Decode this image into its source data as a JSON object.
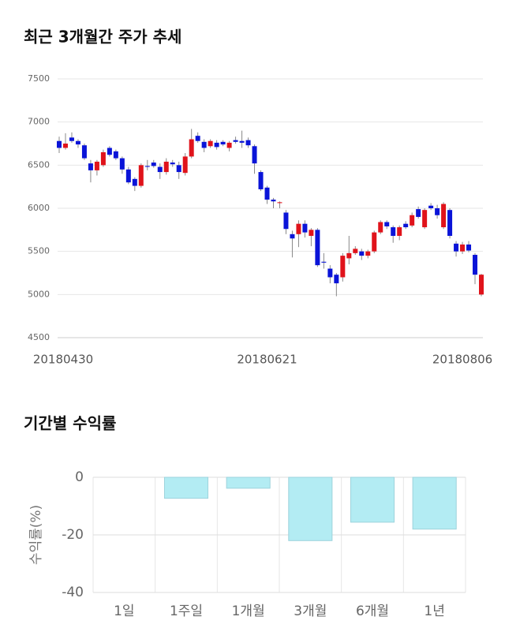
{
  "chart_data": [
    {
      "type": "candlestick",
      "title": "최근 3개월간 주가 추세",
      "categories": [
        "20180430",
        null,
        null,
        null,
        null,
        null,
        null,
        null,
        null,
        null,
        null,
        null,
        null,
        null,
        null,
        null,
        null,
        null,
        null,
        null,
        null,
        null,
        null,
        null,
        null,
        null,
        null,
        null,
        null,
        null,
        null,
        null,
        null,
        "20180621",
        null,
        null,
        null,
        null,
        null,
        null,
        null,
        null,
        null,
        null,
        null,
        null,
        null,
        null,
        null,
        null,
        null,
        null,
        null,
        null,
        null,
        null,
        null,
        null,
        null,
        null,
        null,
        null,
        null,
        null,
        "20180806",
        null,
        null,
        null
      ],
      "open": [
        6780,
        6700,
        6820,
        6780,
        6730,
        6520,
        6440,
        6500,
        6700,
        6660,
        6580,
        6450,
        6340,
        6260,
        6490,
        6530,
        6480,
        6420,
        6530,
        6500,
        6410,
        6600,
        6840,
        6770,
        6720,
        6760,
        6770,
        6700,
        6790,
        6780,
        6790,
        6720,
        6420,
        6240,
        6100,
        6060,
        5950,
        5700,
        5700,
        5820,
        5680,
        5750,
        5380,
        5300,
        5230,
        5200,
        5420,
        5480,
        5500,
        5450,
        5500,
        5720,
        5840,
        5780,
        5680,
        5820,
        5800,
        5990,
        5780,
        6030,
        6000,
        5780,
        5980,
        5590,
        5500,
        5580,
        5460,
        5000
      ],
      "high": [
        6830,
        6870,
        6880,
        6800,
        6750,
        6560,
        6560,
        6680,
        6720,
        6680,
        6600,
        6480,
        6360,
        6520,
        6560,
        6560,
        6520,
        6580,
        6560,
        6540,
        6640,
        6920,
        6880,
        6800,
        6800,
        6790,
        6790,
        6780,
        6830,
        6900,
        6820,
        6740,
        6440,
        6260,
        6120,
        6080,
        5980,
        5740,
        5860,
        5860,
        5770,
        5770,
        5480,
        5340,
        5250,
        5480,
        5680,
        5560,
        5530,
        5520,
        5740,
        5860,
        5860,
        5800,
        5800,
        5850,
        5950,
        6020,
        6000,
        6060,
        6040,
        6070,
        6000,
        5620,
        5610,
        5620,
        5480,
        5240
      ],
      "low": [
        6640,
        6680,
        6760,
        6700,
        6560,
        6300,
        6380,
        6480,
        6600,
        6560,
        6400,
        6280,
        6200,
        6240,
        6440,
        6470,
        6340,
        6390,
        6480,
        6340,
        6380,
        6580,
        6760,
        6650,
        6700,
        6680,
        6720,
        6660,
        6750,
        6700,
        6700,
        6400,
        6200,
        6050,
        6000,
        6000,
        5700,
        5430,
        5550,
        5660,
        5560,
        5320,
        5300,
        5130,
        4980,
        5150,
        5350,
        5460,
        5400,
        5420,
        5480,
        5700,
        5760,
        5600,
        5630,
        5760,
        5780,
        5880,
        5760,
        5980,
        5880,
        5760,
        5650,
        5440,
        5470,
        5490,
        5120,
        4980
      ],
      "close": [
        6700,
        6750,
        6780,
        6740,
        6580,
        6440,
        6540,
        6650,
        6620,
        6580,
        6450,
        6300,
        6260,
        6500,
        6480,
        6490,
        6420,
        6540,
        6510,
        6420,
        6600,
        6800,
        6780,
        6700,
        6780,
        6710,
        6740,
        6760,
        6770,
        6760,
        6730,
        6520,
        6220,
        6100,
        6080,
        6070,
        5760,
        5650,
        5820,
        5720,
        5750,
        5340,
        5370,
        5200,
        5130,
        5450,
        5480,
        5530,
        5450,
        5500,
        5720,
        5840,
        5790,
        5680,
        5780,
        5780,
        5920,
        5900,
        5980,
        6000,
        5920,
        6050,
        5680,
        5500,
        5580,
        5510,
        5230,
        5230
      ],
      "up_color": "#e0131b",
      "down_color": "#0a14d8",
      "ylim": [
        4500,
        7500
      ],
      "yticks": [
        4500,
        5000,
        5500,
        6000,
        6500,
        7000,
        7500
      ],
      "grid": true
    },
    {
      "type": "bar",
      "title": "기간별 수익률",
      "ylabel": "수익률(%)",
      "categories": [
        "1일",
        "1주일",
        "1개월",
        "3개월",
        "6개월",
        "1년"
      ],
      "values": [
        0,
        -7.3,
        -3.8,
        -22,
        -15.6,
        -18
      ],
      "color": "#b3ecf3",
      "edge_color": "#9dd3dc",
      "ylim": [
        -40,
        0
      ],
      "yticks": [
        -40,
        -20,
        0
      ],
      "grid": true
    }
  ]
}
